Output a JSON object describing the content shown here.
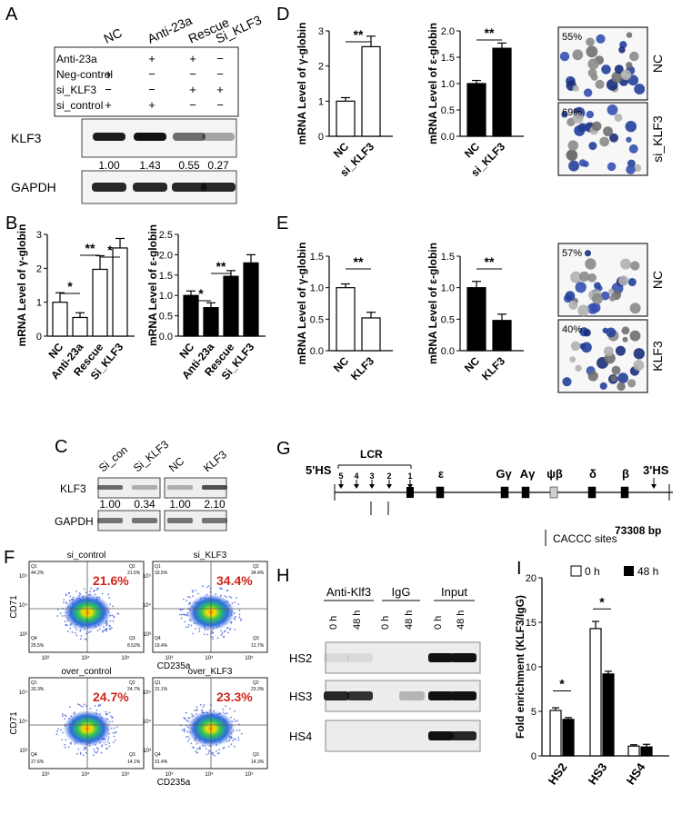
{
  "panels": {
    "A": {
      "letter": "A",
      "columns": [
        "NC",
        "Anti-23a",
        "Rescue",
        "Si_KLF3"
      ],
      "treatment_rows": [
        {
          "label": "Anti-23a",
          "marks": [
            "",
            "+",
            "+",
            "−"
          ]
        },
        {
          "label": "Neg-control",
          "marks": [
            "+",
            "−",
            "−",
            "−"
          ]
        },
        {
          "label": "si_KLF3",
          "marks": [
            "−",
            "−",
            "+",
            "+"
          ]
        },
        {
          "label": "si_control",
          "marks": [
            "+",
            "+",
            "−",
            "−"
          ]
        }
      ],
      "blot1_label": "KLF3",
      "quant": [
        "1.00",
        "1.43",
        "0.55",
        "0.27"
      ],
      "blot2_label": "GAPDH"
    },
    "B": {
      "letter": "B",
      "ylabel_gamma": "mRNA Level of γ-globin",
      "ylabel_eps": "mRNA Level of ε-globin",
      "sig": {
        "s1": "*",
        "s2": "**",
        "s3": "*",
        "s4": "*",
        "s5": "**"
      }
    },
    "C": {
      "letter": "C",
      "left_cols": [
        "Si_con",
        "Si_KLF3"
      ],
      "right_cols": [
        "NC",
        "KLF3"
      ],
      "blot1_label": "KLF3",
      "blot2_label": "GAPDH",
      "quant_left": [
        "1.00",
        "0.34"
      ],
      "quant_right": [
        "1.00",
        "2.10"
      ]
    },
    "D": {
      "letter": "D",
      "ylabel_gamma": "mRNA Level of γ-globin",
      "ylabel_eps": "mRNA Level of ε-globin",
      "sig": "**",
      "img_labels": [
        "NC",
        "si_KLF3"
      ],
      "img_pcts": [
        "55%",
        "69%"
      ]
    },
    "E": {
      "letter": "E",
      "ylabel_gamma": "mRNA Level of γ-globin",
      "ylabel_eps": "mRNA Level of ε-globin",
      "sig": "**",
      "img_labels": [
        "NC",
        "KLF3"
      ],
      "img_pcts": [
        "57%",
        "40%"
      ]
    },
    "F": {
      "letter": "F",
      "plots": [
        {
          "title": "si_control",
          "pct": "21.6%",
          "q": [
            "44.2%",
            "21.6%",
            "25.5%",
            "8.52%"
          ]
        },
        {
          "title": "si_KLF3",
          "pct": "34.4%",
          "q": [
            "33.5%",
            "34.4%",
            "19.4%",
            "12.7%"
          ]
        },
        {
          "title": "over_control",
          "pct": "24.7%",
          "q": [
            "33.3%",
            "24.7%",
            "27.6%",
            "14.1%"
          ]
        },
        {
          "title": "over_KLF3",
          "pct": "23.3%",
          "q": [
            "31.1%",
            "23.3%",
            "31.4%",
            "14.3%"
          ]
        }
      ],
      "ylabel": "CD71",
      "xlabel": "CD235a",
      "ticks": [
        "10³",
        "10⁴",
        "10⁵"
      ],
      "quad_names": [
        "Q1",
        "Q2",
        "Q4",
        "Q3"
      ]
    },
    "G": {
      "letter": "G",
      "hs5": "5'HS",
      "lcr": "LCR",
      "hs_numbers": [
        "5",
        "4",
        "3",
        "2",
        "1"
      ],
      "genes": [
        "ε",
        "Gγ",
        "Aγ",
        "ψβ",
        "δ",
        "β"
      ],
      "hs3": "3'HS",
      "bp": "73308 bp",
      "cacc": "CACCC sites"
    },
    "H": {
      "letter": "H",
      "groups": [
        "Anti-Klf3",
        "IgG",
        "Input"
      ],
      "lanes": [
        "0 h",
        "48 h",
        "0 h",
        "48 h",
        "0 h",
        "48 h"
      ],
      "rows": [
        "HS2",
        "HS3",
        "HS4"
      ]
    },
    "I": {
      "letter": "I",
      "legend": [
        "0 h",
        "48 h"
      ],
      "sig": [
        "*",
        "*"
      ]
    }
  },
  "chart_data": [
    {
      "type": "bar",
      "panel": "B-left",
      "categories": [
        "NC",
        "Anti-23a",
        "Rescue",
        "Si_KLF3"
      ],
      "values": [
        1.0,
        0.55,
        1.97,
        2.6
      ],
      "errors": [
        0.28,
        0.14,
        0.4,
        0.28
      ],
      "ylabel": "mRNA Level of γ-globin",
      "ylim": [
        0,
        3
      ],
      "yticks": [
        "0",
        "1",
        "2",
        "3"
      ],
      "color": "#ffffff"
    },
    {
      "type": "bar",
      "panel": "B-right",
      "categories": [
        "NC",
        "Anti-23a",
        "Rescue",
        "Si_KLF3"
      ],
      "values": [
        1.0,
        0.7,
        1.47,
        1.8
      ],
      "errors": [
        0.11,
        0.12,
        0.14,
        0.2
      ],
      "ylabel": "mRNA Level of ε-globin",
      "ylim": [
        0,
        2.5
      ],
      "yticks": [
        "0.0",
        "0.5",
        "1.0",
        "1.5",
        "2.0",
        "2.5"
      ],
      "color": "#000000"
    },
    {
      "type": "bar",
      "panel": "D-left",
      "categories": [
        "NC",
        "si_KLF3"
      ],
      "values": [
        1.0,
        2.55
      ],
      "errors": [
        0.1,
        0.3
      ],
      "ylabel": "mRNA Level of γ-globin",
      "ylim": [
        0,
        3
      ],
      "yticks": [
        "0",
        "1",
        "2",
        "3"
      ],
      "color": "#ffffff"
    },
    {
      "type": "bar",
      "panel": "D-right",
      "categories": [
        "NC",
        "si_KLF3"
      ],
      "values": [
        1.0,
        1.67
      ],
      "errors": [
        0.06,
        0.1
      ],
      "ylabel": "mRNA Level of ε-globin",
      "ylim": [
        0,
        2.0
      ],
      "yticks": [
        "0.0",
        "0.5",
        "1.0",
        "1.5",
        "2.0"
      ],
      "color": "#000000"
    },
    {
      "type": "bar",
      "panel": "E-left",
      "categories": [
        "NC",
        "KLF3"
      ],
      "values": [
        1.0,
        0.52
      ],
      "errors": [
        0.06,
        0.09
      ],
      "ylabel": "mRNA Level of γ-globin",
      "ylim": [
        0,
        1.5
      ],
      "yticks": [
        "0.0",
        "0.5",
        "1.0",
        "1.5"
      ],
      "color": "#ffffff"
    },
    {
      "type": "bar",
      "panel": "E-right",
      "categories": [
        "NC",
        "KLF3"
      ],
      "values": [
        1.0,
        0.48
      ],
      "errors": [
        0.1,
        0.1
      ],
      "ylabel": "mRNA Level of ε-globin",
      "ylim": [
        0,
        1.5
      ],
      "yticks": [
        "0.0",
        "0.5",
        "1.0",
        "1.5"
      ],
      "color": "#000000"
    },
    {
      "type": "bar",
      "panel": "I",
      "categories": [
        "HS2",
        "HS3",
        "HS4"
      ],
      "series": [
        {
          "name": "0 h",
          "values": [
            5.1,
            14.3,
            1.1
          ],
          "errors": [
            0.3,
            0.8,
            0.15
          ],
          "color": "#ffffff"
        },
        {
          "name": "48 h",
          "values": [
            4.1,
            9.2,
            1.0
          ],
          "errors": [
            0.2,
            0.3,
            0.3
          ],
          "color": "#000000"
        }
      ],
      "ylabel": "Fold enrichment (KLF3/IgG)",
      "ylim": [
        0,
        20
      ],
      "yticks": [
        "0",
        "5",
        "10",
        "15",
        "20"
      ]
    }
  ]
}
